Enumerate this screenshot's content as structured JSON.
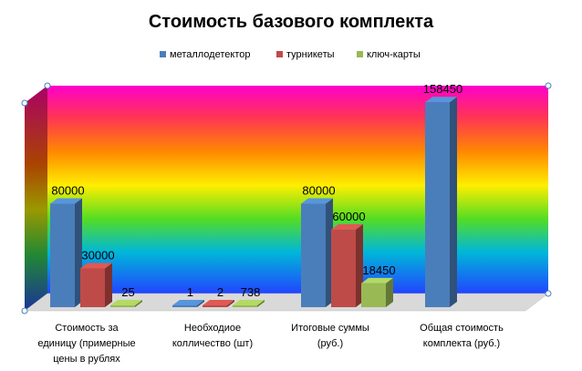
{
  "chart_data": {
    "type": "bar",
    "title": "Стоимость базового комплекта",
    "categories": [
      "Стоимость за единицу (примерные цены в рублях",
      "Необходиое колличество (шт)",
      "Итоговые суммы (руб.)",
      "Общая стоимость комплекта (руб.)"
    ],
    "category_lines": [
      [
        "Стоимость за",
        "единицу (примерные",
        "цены в рублях"
      ],
      [
        "Необходиое",
        "колличество (шт)"
      ],
      [
        "Итоговые суммы",
        "(руб.)"
      ],
      [
        "Общая стоимость",
        "комплекта (руб.)"
      ]
    ],
    "series": [
      {
        "name": "металлодетектор",
        "color": "#4A7EBB",
        "values": [
          80000,
          1,
          80000,
          158450
        ]
      },
      {
        "name": "турникеты",
        "color": "#BE4B48",
        "values": [
          30000,
          2,
          60000,
          null
        ]
      },
      {
        "name": "ключ-карты",
        "color": "#98B954",
        "values": [
          25,
          738,
          18450,
          null
        ]
      }
    ],
    "ylim": [
      0,
      160000
    ],
    "legend_position": "top",
    "grid": false,
    "background": "rainbow-gradient-3d"
  }
}
